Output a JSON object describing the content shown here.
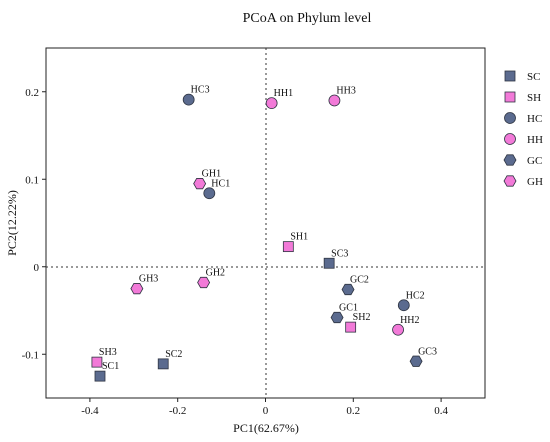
{
  "chart_data": {
    "type": "scatter",
    "title": "PCoA on Phylum level",
    "xlabel": "PC1(62.67%)",
    "ylabel": "PC2(12.22%)",
    "xlim": [
      -0.5,
      0.5
    ],
    "ylim": [
      -0.15,
      0.25
    ],
    "xticks": [
      -0.4,
      -0.2,
      0,
      0.2,
      0.4
    ],
    "xtick_labels": [
      "-0.4",
      "-0.2",
      "0",
      "0.2",
      "0.4"
    ],
    "yticks": [
      -0.1,
      0,
      0.1,
      0.2
    ],
    "ytick_labels": [
      "-0.1",
      "0",
      "0.1",
      "0.2"
    ],
    "grid": false,
    "reference_lines": {
      "x": 0,
      "y": 0,
      "style": "dotted"
    },
    "legend_position": "right",
    "series": [
      {
        "name": "SC",
        "marker": "square",
        "color": "#5b6b8f",
        "points": [
          {
            "label": "SC1",
            "x": -0.377,
            "y": -0.125
          },
          {
            "label": "SC2",
            "x": -0.233,
            "y": -0.111
          },
          {
            "label": "SC3",
            "x": 0.145,
            "y": 0.004
          }
        ]
      },
      {
        "name": "SH",
        "marker": "square",
        "color": "#f27ad8",
        "points": [
          {
            "label": "SH1",
            "x": 0.052,
            "y": 0.023
          },
          {
            "label": "SH2",
            "x": 0.194,
            "y": -0.069
          },
          {
            "label": "SH3",
            "x": -0.384,
            "y": -0.109
          }
        ]
      },
      {
        "name": "HC",
        "marker": "circle",
        "color": "#5b6b8f",
        "points": [
          {
            "label": "HC1",
            "x": -0.128,
            "y": 0.084
          },
          {
            "label": "HC2",
            "x": 0.315,
            "y": -0.044
          },
          {
            "label": "HC3",
            "x": -0.175,
            "y": 0.191
          }
        ]
      },
      {
        "name": "HH",
        "marker": "circle",
        "color": "#f27ad8",
        "points": [
          {
            "label": "HH1",
            "x": 0.014,
            "y": 0.187
          },
          {
            "label": "HH2",
            "x": 0.302,
            "y": -0.072
          },
          {
            "label": "HH3",
            "x": 0.157,
            "y": 0.19
          }
        ]
      },
      {
        "name": "GC",
        "marker": "hexagon",
        "color": "#5b6b8f",
        "points": [
          {
            "label": "GC1",
            "x": 0.163,
            "y": -0.058
          },
          {
            "label": "GC2",
            "x": 0.188,
            "y": -0.026
          },
          {
            "label": "GC3",
            "x": 0.343,
            "y": -0.108
          }
        ]
      },
      {
        "name": "GH",
        "marker": "hexagon",
        "color": "#f27ad8",
        "points": [
          {
            "label": "GH1",
            "x": -0.15,
            "y": 0.095
          },
          {
            "label": "GH2",
            "x": -0.141,
            "y": -0.018
          },
          {
            "label": "GH3",
            "x": -0.293,
            "y": -0.025
          }
        ]
      }
    ]
  }
}
